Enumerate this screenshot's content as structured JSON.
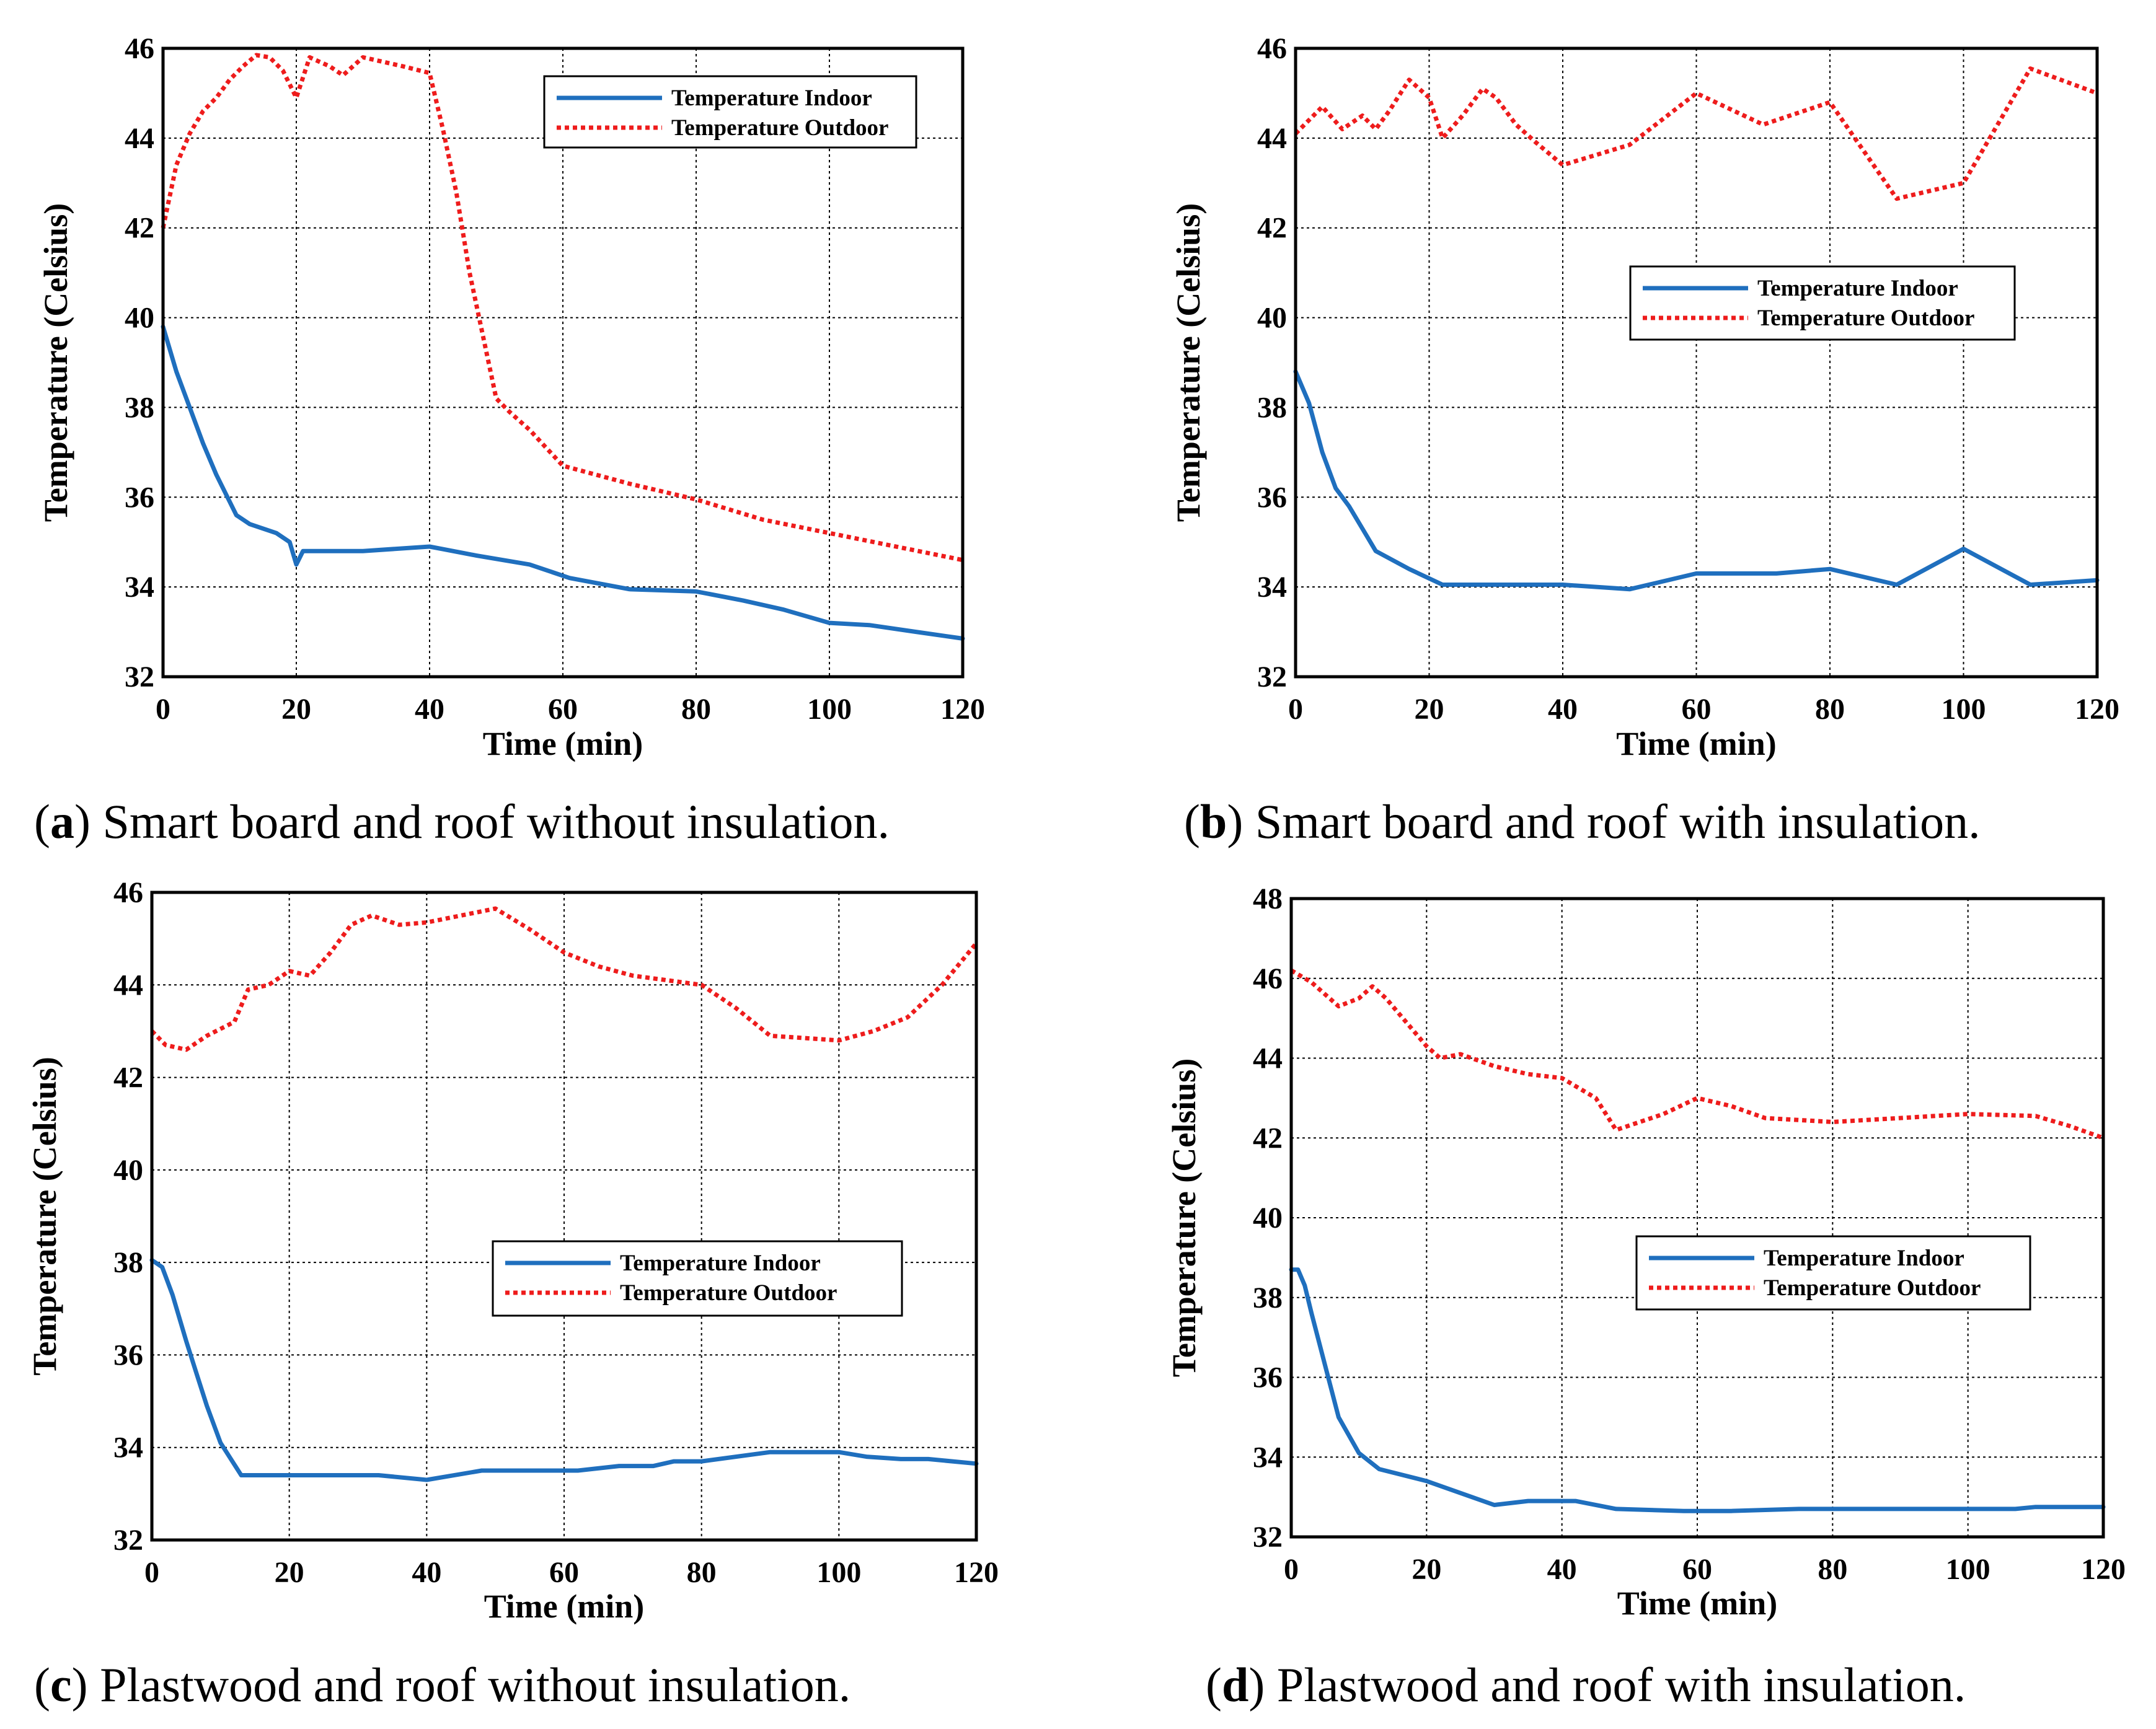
{
  "figure": {
    "colors": {
      "indoor": "#1f6fbe",
      "outdoor": "#ee1c1c"
    }
  },
  "chart_data": [
    {
      "id": "a",
      "type": "line",
      "caption_letter": "a",
      "caption_text": " Smart board and roof without insulation.",
      "xlabel": "Time (min)",
      "ylabel": "Temperature (Celsius)",
      "xlim": [
        0,
        120
      ],
      "ylim": [
        32,
        46
      ],
      "xticks": [
        0,
        20,
        40,
        60,
        80,
        100,
        120
      ],
      "yticks": [
        32,
        34,
        36,
        38,
        40,
        42,
        44,
        46
      ],
      "legend_position": "top-right",
      "series": [
        {
          "name": "Temperature Indoor",
          "style": "solid",
          "color": "#1f6fbe",
          "x": [
            0,
            2,
            4,
            6,
            8,
            10,
            11,
            13,
            17,
            19,
            20,
            21,
            30,
            40,
            47,
            55,
            61,
            70,
            80,
            87,
            93,
            100,
            106,
            113,
            120
          ],
          "y": [
            39.8,
            38.8,
            38.0,
            37.2,
            36.5,
            35.9,
            35.6,
            35.4,
            35.2,
            35.0,
            34.5,
            34.8,
            34.8,
            34.9,
            34.7,
            34.5,
            34.2,
            33.95,
            33.9,
            33.7,
            33.5,
            33.2,
            33.15,
            33.0,
            32.85
          ]
        },
        {
          "name": "Temperature Outdoor",
          "style": "dotted",
          "color": "#ee1c1c",
          "x": [
            0,
            2,
            4,
            6,
            8,
            10,
            12,
            14,
            16,
            18,
            20,
            22,
            25,
            27,
            30,
            33,
            36,
            40,
            42,
            44,
            46,
            48,
            50,
            52,
            55,
            60,
            70,
            80,
            90,
            100,
            110,
            120
          ],
          "y": [
            42.0,
            43.4,
            44.1,
            44.6,
            44.9,
            45.3,
            45.6,
            45.85,
            45.8,
            45.5,
            44.9,
            45.8,
            45.6,
            45.4,
            45.8,
            45.7,
            45.6,
            45.45,
            44.2,
            42.8,
            41.0,
            39.6,
            38.2,
            37.9,
            37.5,
            36.7,
            36.3,
            35.95,
            35.5,
            35.2,
            34.9,
            34.6
          ]
        }
      ]
    },
    {
      "id": "b",
      "type": "line",
      "caption_letter": "b",
      "caption_text": " Smart board and roof with insulation.",
      "xlabel": "Time (min)",
      "ylabel": "Temperature (Celsius)",
      "xlim": [
        0,
        120
      ],
      "ylim": [
        32,
        46
      ],
      "xticks": [
        0,
        20,
        40,
        60,
        80,
        100,
        120
      ],
      "yticks": [
        32,
        34,
        36,
        38,
        40,
        42,
        44,
        46
      ],
      "legend_position": "center-right",
      "series": [
        {
          "name": "Temperature Indoor",
          "style": "solid",
          "color": "#1f6fbe",
          "x": [
            0,
            2,
            4,
            6,
            8,
            10,
            12,
            17,
            22,
            40,
            50,
            60,
            72,
            80,
            90,
            100,
            110,
            120
          ],
          "y": [
            38.8,
            38.1,
            37.0,
            36.2,
            35.8,
            35.3,
            34.8,
            34.4,
            34.05,
            34.05,
            33.95,
            34.3,
            34.3,
            34.4,
            34.05,
            34.85,
            34.05,
            34.15
          ]
        },
        {
          "name": "Temperature Outdoor",
          "style": "dotted",
          "color": "#ee1c1c",
          "x": [
            0,
            4,
            7,
            10,
            12,
            14,
            17,
            20,
            22,
            25,
            28,
            30,
            33,
            36,
            40,
            50,
            60,
            70,
            80,
            90,
            100,
            110,
            120
          ],
          "y": [
            44.1,
            44.7,
            44.2,
            44.5,
            44.2,
            44.6,
            45.3,
            44.9,
            44.0,
            44.5,
            45.1,
            44.9,
            44.3,
            43.9,
            43.4,
            43.85,
            45.0,
            44.3,
            44.8,
            42.65,
            43.0,
            45.55,
            45.0
          ]
        }
      ]
    },
    {
      "id": "c",
      "type": "line",
      "caption_letter": "c",
      "caption_text": " Plastwood and roof without insulation.",
      "xlabel": "Time (min)",
      "ylabel": "Temperature (Celsius)",
      "xlim": [
        0,
        120
      ],
      "ylim": [
        32,
        46
      ],
      "xticks": [
        0,
        20,
        40,
        60,
        80,
        100,
        120
      ],
      "yticks": [
        32,
        34,
        36,
        38,
        40,
        42,
        44,
        46
      ],
      "legend_position": "center-right",
      "series": [
        {
          "name": "Temperature Indoor",
          "style": "solid",
          "color": "#1f6fbe",
          "x": [
            0,
            1.5,
            3,
            5,
            6.5,
            8,
            10,
            13,
            33,
            40,
            48,
            62,
            68,
            73,
            76,
            80,
            90,
            100,
            104,
            109,
            113,
            120
          ],
          "y": [
            38.05,
            37.9,
            37.3,
            36.3,
            35.6,
            34.9,
            34.1,
            33.4,
            33.4,
            33.3,
            33.5,
            33.5,
            33.6,
            33.6,
            33.7,
            33.7,
            33.9,
            33.9,
            33.8,
            33.75,
            33.75,
            33.65
          ]
        },
        {
          "name": "Temperature Outdoor",
          "style": "dotted",
          "color": "#ee1c1c",
          "x": [
            0,
            2,
            5,
            8,
            12,
            14,
            17,
            20,
            23,
            26,
            29,
            32,
            36,
            40,
            45,
            50,
            55,
            60,
            65,
            70,
            75,
            80,
            85,
            90,
            95,
            100,
            105,
            110,
            115,
            120
          ],
          "y": [
            43.0,
            42.7,
            42.6,
            42.9,
            43.2,
            43.9,
            44.0,
            44.3,
            44.2,
            44.7,
            45.3,
            45.5,
            45.3,
            45.35,
            45.5,
            45.65,
            45.2,
            44.7,
            44.4,
            44.2,
            44.1,
            44.0,
            43.5,
            42.9,
            42.85,
            42.8,
            43.0,
            43.3,
            44.0,
            44.9
          ]
        }
      ]
    },
    {
      "id": "d",
      "type": "line",
      "caption_letter": "d",
      "caption_text": " Plastwood and roof with insulation.",
      "xlabel": "Time (min)",
      "ylabel": "Temperature (Celsius)",
      "xlim": [
        0,
        120
      ],
      "ylim": [
        32,
        48
      ],
      "xticks": [
        0,
        20,
        40,
        60,
        80,
        100,
        120
      ],
      "yticks": [
        32,
        34,
        36,
        38,
        40,
        42,
        44,
        46,
        48
      ],
      "legend_position": "center-right",
      "series": [
        {
          "name": "Temperature Indoor",
          "style": "solid",
          "color": "#1f6fbe",
          "x": [
            0,
            1,
            2,
            3,
            5,
            7,
            10,
            13,
            20,
            30,
            35,
            42,
            48,
            58,
            65,
            75,
            80,
            90,
            100,
            107,
            110,
            120
          ],
          "y": [
            38.7,
            38.7,
            38.3,
            37.6,
            36.3,
            35.0,
            34.1,
            33.7,
            33.4,
            32.8,
            32.9,
            32.9,
            32.7,
            32.65,
            32.65,
            32.7,
            32.7,
            32.7,
            32.7,
            32.7,
            32.75,
            32.75
          ]
        },
        {
          "name": "Temperature Outdoor",
          "style": "dotted",
          "color": "#ee1c1c",
          "x": [
            0,
            3,
            7,
            10,
            12,
            14,
            17,
            20,
            22,
            25,
            30,
            35,
            40,
            45,
            48,
            55,
            60,
            65,
            70,
            80,
            90,
            100,
            110,
            115,
            120
          ],
          "y": [
            46.2,
            45.9,
            45.3,
            45.5,
            45.8,
            45.5,
            44.9,
            44.3,
            44.0,
            44.1,
            43.8,
            43.6,
            43.5,
            43.0,
            42.2,
            42.6,
            43.0,
            42.8,
            42.5,
            42.4,
            42.5,
            42.6,
            42.55,
            42.3,
            42.0
          ]
        }
      ]
    }
  ]
}
